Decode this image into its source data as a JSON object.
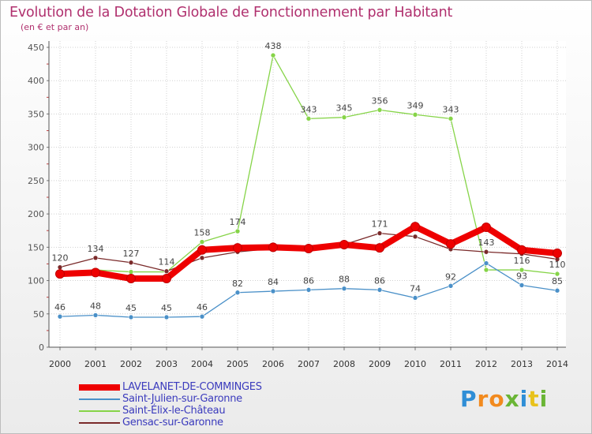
{
  "logo": {
    "text": "Proxiti",
    "letters": [
      {
        "ch": "P",
        "color": "#2f8ed6"
      },
      {
        "ch": "r",
        "color": "#f28a1e"
      },
      {
        "ch": "o",
        "color": "#f28a1e"
      },
      {
        "ch": "x",
        "color": "#6ab535"
      },
      {
        "ch": "i",
        "color": "#2f8ed6"
      },
      {
        "ch": "t",
        "color": "#e8c21c"
      },
      {
        "ch": "i",
        "color": "#6ab535"
      }
    ]
  },
  "chart_data": {
    "type": "line",
    "title": "Evolution de la Dotation Globale de Fonctionnement par Habitant",
    "subtitle": "(en € et par an)",
    "xlabel": "",
    "ylabel": "",
    "x": [
      "2000",
      "2001",
      "2002",
      "2003",
      "2004",
      "2005",
      "2006",
      "2007",
      "2008",
      "2009",
      "2010",
      "2011",
      "2012",
      "2013",
      "2014"
    ],
    "ylim": [
      0,
      450
    ],
    "yticks": [
      0,
      50,
      100,
      150,
      200,
      250,
      300,
      350,
      400,
      450
    ],
    "grid": true,
    "legend_position": "bottom-left",
    "series": [
      {
        "name": "LAVELANET-DE-COMMINGES",
        "color": "#ee0000",
        "values": [
          110,
          112,
          103,
          103,
          146,
          149,
          150,
          148,
          154,
          149,
          181,
          155,
          180,
          146,
          141
        ],
        "labels": [
          "",
          "",
          "",
          "",
          "",
          "",
          "",
          "",
          "",
          "",
          "",
          "",
          "",
          "",
          ""
        ]
      },
      {
        "name": "Saint-Julien-sur-Garonne",
        "color": "#4a90c8",
        "values": [
          46,
          48,
          45,
          45,
          46,
          82,
          84,
          86,
          88,
          86,
          74,
          92,
          126,
          93,
          85
        ],
        "labels": [
          "46",
          "48",
          "45",
          "45",
          "46",
          "82",
          "84",
          "86",
          "88",
          "86",
          "74",
          "92",
          "",
          "93",
          "85"
        ]
      },
      {
        "name": "Saint-Élix-le-Château",
        "color": "#86d448",
        "values": [
          112,
          116,
          113,
          113,
          158,
          174,
          438,
          343,
          345,
          356,
          349,
          343,
          116,
          116,
          110
        ],
        "labels": [
          "",
          "",
          "",
          "",
          "158",
          "174",
          "438",
          "343",
          "345",
          "356",
          "349",
          "343",
          "",
          "116",
          "110"
        ]
      },
      {
        "name": "Gensac-sur-Garonne",
        "color": "#7a2a2a",
        "values": [
          120,
          134,
          127,
          114,
          134,
          143,
          148,
          147,
          154,
          171,
          166,
          147,
          143,
          140,
          132
        ],
        "labels": [
          "120",
          "134",
          "127",
          "114",
          "",
          "",
          "",
          "",
          "",
          "171",
          "",
          "",
          "143",
          "",
          ""
        ]
      }
    ]
  }
}
